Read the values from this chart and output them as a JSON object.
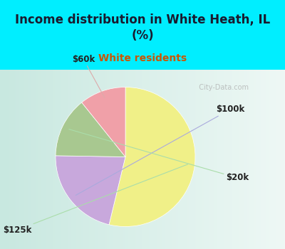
{
  "title": "Income distribution in White Heath, IL\n(%)",
  "subtitle": "White residents",
  "title_color": "#1a1a2e",
  "subtitle_color": "#cc5500",
  "bg_cyan": "#00eeff",
  "chart_bg_left": "#d4ede8",
  "chart_bg_right": "#eef8f5",
  "slices": [
    {
      "label": "$125k",
      "value": 50,
      "color": "#f0f088"
    },
    {
      "label": "$100k",
      "value": 20,
      "color": "#c8a8dc"
    },
    {
      "label": "$20k",
      "value": 13,
      "color": "#a8c890"
    },
    {
      "label": "$60k",
      "value": 10,
      "color": "#f0a0a8"
    }
  ],
  "startangle": 90,
  "watermark": "  City-Data.com",
  "label_fontsize": 8.5,
  "title_fontsize": 12,
  "subtitle_fontsize": 10
}
